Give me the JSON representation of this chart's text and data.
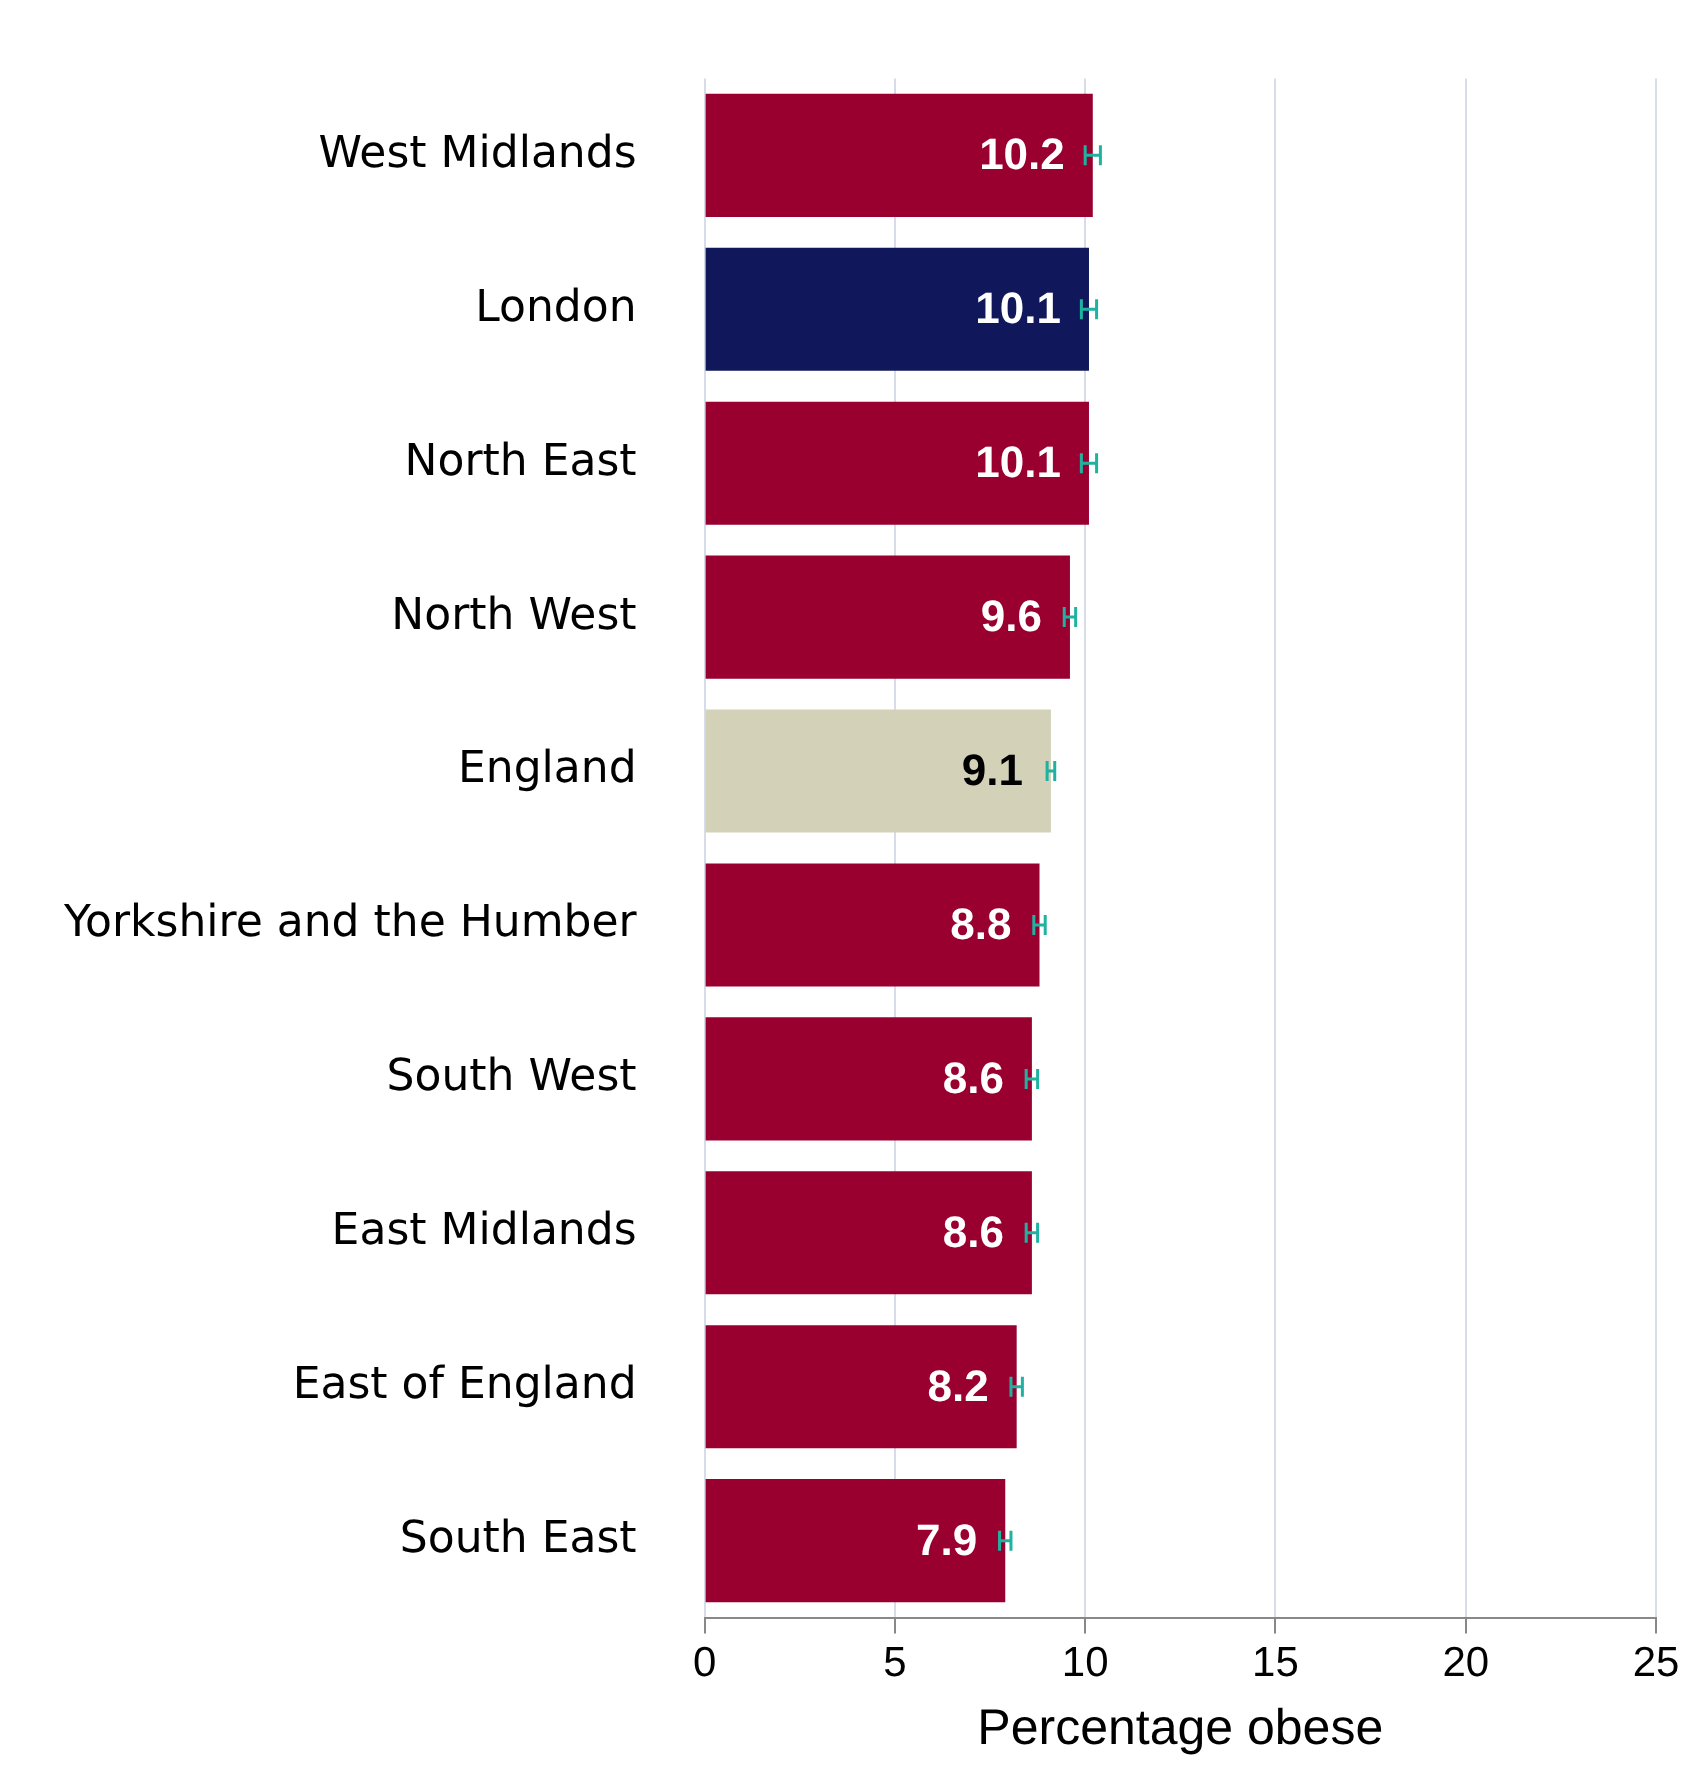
{
  "chart_data": {
    "type": "bar",
    "orientation": "horizontal",
    "xlabel": "Percentage obese",
    "categories": [
      "West Midlands",
      "London",
      "North East",
      "North West",
      "England",
      "Yorkshire and the Humber",
      "South West",
      "East Midlands",
      "East of England",
      "South East"
    ],
    "values": [
      10.2,
      10.1,
      10.1,
      9.6,
      9.1,
      8.8,
      8.6,
      8.6,
      8.2,
      7.9
    ],
    "colors": [
      "#990030",
      "#10175a",
      "#990030",
      "#990030",
      "#d3d2b8",
      "#990030",
      "#990030",
      "#990030",
      "#990030",
      "#990030"
    ],
    "errors": [
      0.2,
      0.2,
      0.2,
      0.15,
      0.1,
      0.15,
      0.15,
      0.15,
      0.15,
      0.15
    ],
    "xlim": [
      0,
      25
    ],
    "xticks": [
      0,
      5,
      10,
      15,
      20,
      25
    ],
    "grid": "x",
    "data_labels": true,
    "legend": false
  }
}
